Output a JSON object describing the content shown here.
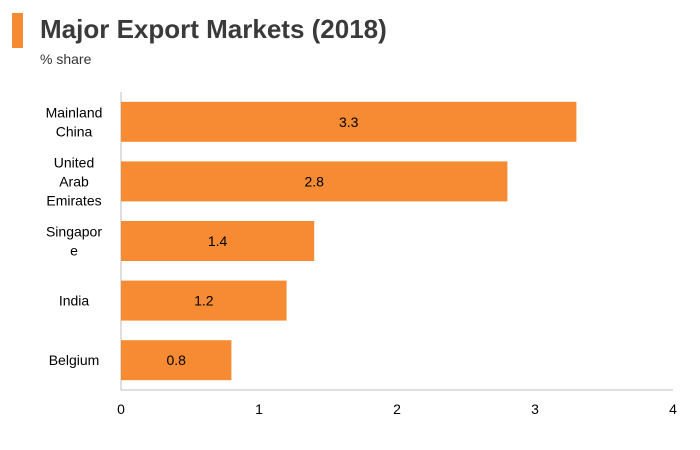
{
  "header": {
    "title": "Major Export Markets (2018)",
    "subtitle": "% share"
  },
  "colors": {
    "accent": "#F68B33",
    "bar": "#F68B33",
    "axis": "#BFBFBF"
  },
  "chart_data": {
    "type": "bar",
    "orientation": "horizontal",
    "title": "Major Export Markets (2018)",
    "subtitle": "% share",
    "categories": [
      "Mainland China",
      "United Arab Emirates",
      "Singapore",
      "India",
      "Belgium"
    ],
    "category_label_lines": [
      [
        "Mainland",
        "China"
      ],
      [
        "United",
        "Arab",
        "Emirates"
      ],
      [
        "Singapor",
        "e"
      ],
      [
        "India"
      ],
      [
        "Belgium"
      ]
    ],
    "values": [
      3.3,
      2.8,
      1.4,
      1.2,
      0.8
    ],
    "data_labels": [
      "3.3",
      "2.8",
      "1.4",
      "1.2",
      "0.8"
    ],
    "xlim": [
      0,
      4
    ],
    "xticks": [
      "0",
      "1",
      "2",
      "3",
      "4"
    ],
    "grid": false,
    "legend": "none"
  }
}
